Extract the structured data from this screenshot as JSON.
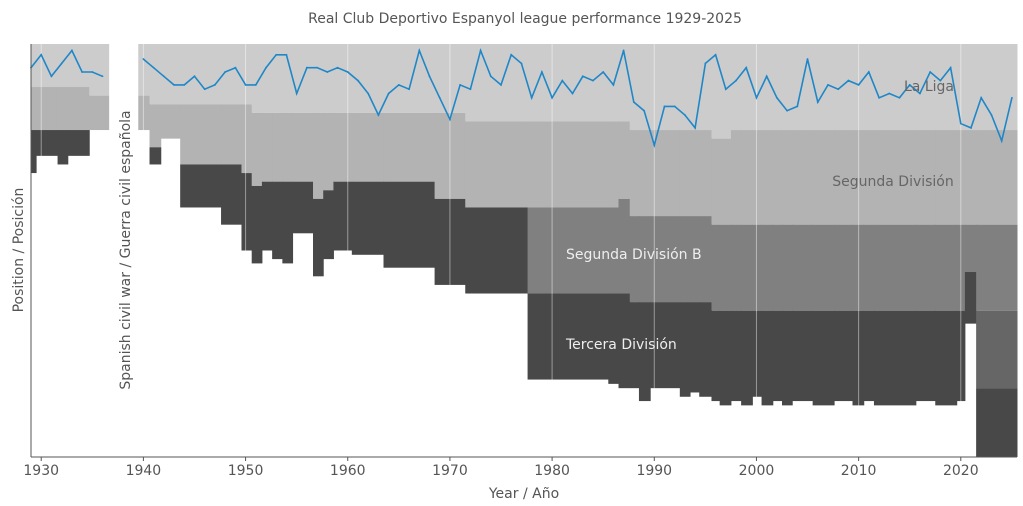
{
  "chart_data": {
    "type": "area",
    "title": "Real Club Deportivo Espanyol league performance 1929-2025",
    "xlabel": "Year / Año",
    "ylabel": "Position / Posición",
    "xlim": [
      1929,
      2025.5
    ],
    "ylim_inverted": [
      96,
      0
    ],
    "x_ticks": [
      1930,
      1940,
      1950,
      1960,
      1970,
      1980,
      1990,
      2000,
      2010,
      2020
    ],
    "grid": "vertical",
    "annotation": "Spanish civil war / Guerra civil española",
    "tier_labels": [
      "La Liga",
      "Segunda División",
      "Segunda División B",
      "Tercera División"
    ],
    "tier_colors": [
      "#cccccc",
      "#b3b3b3",
      "#808080",
      "#484848",
      "#666666"
    ],
    "line_color": "#1f87c8",
    "tier_segments": [
      [
        1929,
        1929.5,
        [
          [
            0,
            10
          ],
          [
            1,
            20
          ],
          [
            3,
            30
          ]
        ]
      ],
      [
        1929.5,
        1931.6,
        [
          [
            0,
            10
          ],
          [
            1,
            20
          ],
          [
            3,
            26
          ]
        ]
      ],
      [
        1931.6,
        1932.6,
        [
          [
            0,
            10
          ],
          [
            1,
            20
          ],
          [
            3,
            28
          ]
        ]
      ],
      [
        1932.6,
        1934.7,
        [
          [
            0,
            10
          ],
          [
            1,
            20
          ],
          [
            3,
            26
          ]
        ]
      ],
      [
        1934.7,
        1936.6,
        [
          [
            0,
            12
          ],
          [
            1,
            20
          ]
        ]
      ],
      [
        1939.5,
        1940.6,
        [
          [
            0,
            12
          ],
          [
            1,
            20
          ]
        ]
      ],
      [
        1940.6,
        1941.7,
        [
          [
            0,
            14
          ],
          [
            1,
            24
          ],
          [
            3,
            28
          ]
        ]
      ],
      [
        1941.7,
        1943.6,
        [
          [
            0,
            14
          ],
          [
            1,
            22
          ]
        ]
      ],
      [
        1943.6,
        1947.6,
        [
          [
            0,
            14
          ],
          [
            1,
            28
          ],
          [
            3,
            38
          ]
        ]
      ],
      [
        1947.6,
        1949.6,
        [
          [
            0,
            14
          ],
          [
            1,
            28
          ],
          [
            3,
            42
          ]
        ]
      ],
      [
        1949.6,
        1950.6,
        [
          [
            0,
            14
          ],
          [
            1,
            30
          ],
          [
            3,
            48
          ]
        ]
      ],
      [
        1950.6,
        1951.6,
        [
          [
            0,
            16
          ],
          [
            1,
            33
          ],
          [
            3,
            51
          ]
        ]
      ],
      [
        1951.6,
        1952.6,
        [
          [
            0,
            16
          ],
          [
            1,
            32
          ],
          [
            3,
            48
          ]
        ]
      ],
      [
        1952.6,
        1953.6,
        [
          [
            0,
            16
          ],
          [
            1,
            32
          ],
          [
            3,
            50
          ]
        ]
      ],
      [
        1953.6,
        1954.6,
        [
          [
            0,
            16
          ],
          [
            1,
            32
          ],
          [
            3,
            51
          ]
        ]
      ],
      [
        1954.6,
        1956.6,
        [
          [
            0,
            16
          ],
          [
            1,
            32
          ],
          [
            3,
            44
          ]
        ]
      ],
      [
        1956.6,
        1957.6,
        [
          [
            0,
            16
          ],
          [
            1,
            36
          ],
          [
            3,
            54
          ]
        ]
      ],
      [
        1957.6,
        1958.6,
        [
          [
            0,
            16
          ],
          [
            1,
            34
          ],
          [
            3,
            50
          ]
        ]
      ],
      [
        1958.6,
        1960.4,
        [
          [
            0,
            16
          ],
          [
            1,
            32
          ],
          [
            3,
            48
          ]
        ]
      ],
      [
        1960.4,
        1963.5,
        [
          [
            0,
            16
          ],
          [
            1,
            32
          ],
          [
            3,
            49
          ]
        ]
      ],
      [
        1963.5,
        1968.5,
        [
          [
            0,
            16
          ],
          [
            1,
            32
          ],
          [
            3,
            52
          ]
        ]
      ],
      [
        1968.5,
        1971.5,
        [
          [
            0,
            16
          ],
          [
            1,
            36
          ],
          [
            3,
            56
          ]
        ]
      ],
      [
        1971.5,
        1977.6,
        [
          [
            0,
            18
          ],
          [
            1,
            38
          ],
          [
            3,
            58
          ]
        ]
      ],
      [
        1977.6,
        1985.5,
        [
          [
            0,
            18
          ],
          [
            1,
            38
          ],
          [
            2,
            58
          ],
          [
            3,
            78
          ]
        ]
      ],
      [
        1985.5,
        1986.5,
        [
          [
            0,
            18
          ],
          [
            1,
            38
          ],
          [
            2,
            58
          ],
          [
            3,
            79
          ]
        ]
      ],
      [
        1986.5,
        1987.6,
        [
          [
            0,
            18
          ],
          [
            1,
            36
          ],
          [
            2,
            58
          ],
          [
            3,
            80
          ]
        ]
      ],
      [
        1987.6,
        1988.5,
        [
          [
            0,
            20
          ],
          [
            1,
            40
          ],
          [
            2,
            60
          ],
          [
            3,
            80
          ]
        ]
      ],
      [
        1988.5,
        1989.6,
        [
          [
            0,
            20
          ],
          [
            1,
            40
          ],
          [
            2,
            60
          ],
          [
            3,
            83
          ]
        ]
      ],
      [
        1989.6,
        1992.5,
        [
          [
            0,
            20
          ],
          [
            1,
            40
          ],
          [
            2,
            60
          ],
          [
            3,
            80
          ]
        ]
      ],
      [
        1992.5,
        1993.5,
        [
          [
            0,
            20
          ],
          [
            1,
            40
          ],
          [
            2,
            60
          ],
          [
            3,
            82
          ]
        ]
      ],
      [
        1993.5,
        1994.4,
        [
          [
            0,
            20
          ],
          [
            1,
            40
          ],
          [
            2,
            60
          ],
          [
            3,
            81
          ]
        ]
      ],
      [
        1994.4,
        1995.6,
        [
          [
            0,
            20
          ],
          [
            1,
            40
          ],
          [
            2,
            60
          ],
          [
            3,
            82
          ]
        ]
      ],
      [
        1995.6,
        1996.4,
        [
          [
            0,
            22
          ],
          [
            1,
            42
          ],
          [
            2,
            62
          ],
          [
            3,
            83
          ]
        ]
      ],
      [
        1996.4,
        1997.5,
        [
          [
            0,
            22
          ],
          [
            1,
            42
          ],
          [
            2,
            62
          ],
          [
            3,
            84
          ]
        ]
      ],
      [
        1997.5,
        1998.5,
        [
          [
            0,
            20
          ],
          [
            1,
            42
          ],
          [
            2,
            62
          ],
          [
            3,
            83
          ]
        ]
      ],
      [
        1998.5,
        1999.6,
        [
          [
            0,
            20
          ],
          [
            1,
            42
          ],
          [
            2,
            62
          ],
          [
            3,
            84
          ]
        ]
      ],
      [
        1999.6,
        2000.5,
        [
          [
            0,
            20
          ],
          [
            1,
            42
          ],
          [
            2,
            62
          ],
          [
            3,
            82
          ]
        ]
      ],
      [
        2000.5,
        2001.6,
        [
          [
            0,
            20
          ],
          [
            1,
            42
          ],
          [
            2,
            62
          ],
          [
            3,
            84
          ]
        ]
      ],
      [
        2001.6,
        2002.5,
        [
          [
            0,
            20
          ],
          [
            1,
            42
          ],
          [
            2,
            62
          ],
          [
            3,
            83
          ]
        ]
      ],
      [
        2002.5,
        2003.5,
        [
          [
            0,
            20
          ],
          [
            1,
            42
          ],
          [
            2,
            62
          ],
          [
            3,
            84
          ]
        ]
      ],
      [
        2003.5,
        2005.5,
        [
          [
            0,
            20
          ],
          [
            1,
            42
          ],
          [
            2,
            62
          ],
          [
            3,
            83
          ]
        ]
      ],
      [
        2005.5,
        2007.6,
        [
          [
            0,
            20
          ],
          [
            1,
            42
          ],
          [
            2,
            62
          ],
          [
            3,
            84
          ]
        ]
      ],
      [
        2007.6,
        2009.4,
        [
          [
            0,
            20
          ],
          [
            1,
            42
          ],
          [
            2,
            62
          ],
          [
            3,
            83
          ]
        ]
      ],
      [
        2009.4,
        2010.5,
        [
          [
            0,
            20
          ],
          [
            1,
            42
          ],
          [
            2,
            62
          ],
          [
            3,
            84
          ]
        ]
      ],
      [
        2010.5,
        2011.5,
        [
          [
            0,
            20
          ],
          [
            1,
            42
          ],
          [
            2,
            62
          ],
          [
            3,
            83
          ]
        ]
      ],
      [
        2011.5,
        2015.6,
        [
          [
            0,
            20
          ],
          [
            1,
            42
          ],
          [
            2,
            62
          ],
          [
            3,
            84
          ]
        ]
      ],
      [
        2015.6,
        2017.5,
        [
          [
            0,
            20
          ],
          [
            1,
            42
          ],
          [
            2,
            62
          ],
          [
            3,
            83
          ]
        ]
      ],
      [
        2017.5,
        2019.6,
        [
          [
            0,
            20
          ],
          [
            1,
            42
          ],
          [
            2,
            62
          ],
          [
            3,
            84
          ]
        ]
      ],
      [
        2019.6,
        2020.4,
        [
          [
            0,
            20
          ],
          [
            1,
            42
          ],
          [
            2,
            62
          ],
          [
            3,
            83
          ]
        ]
      ],
      [
        2020.4,
        2021.5,
        [
          [
            0,
            20
          ],
          [
            1,
            42
          ],
          [
            2,
            53
          ],
          [
            3,
            65
          ]
        ]
      ],
      [
        2021.5,
        2025.5,
        [
          [
            0,
            20
          ],
          [
            1,
            42
          ],
          [
            2,
            62
          ],
          [
            4,
            80
          ],
          [
            3,
            96
          ]
        ]
      ]
    ],
    "position_series": [
      {
        "years": [
          1929,
          1930,
          1931,
          1932,
          1933,
          1934,
          1935,
          1936
        ],
        "positions": [
          6,
          3,
          8,
          5,
          2,
          7,
          7,
          8
        ]
      },
      {
        "years": [
          1940,
          1941,
          1942,
          1943,
          1944,
          1945,
          1946,
          1947,
          1948,
          1949,
          1950,
          1951,
          1952,
          1953,
          1954,
          1955,
          1956,
          1957,
          1958,
          1959,
          1960,
          1961,
          1962,
          1963,
          1964,
          1965,
          1966,
          1967,
          1968,
          1969,
          1970,
          1971,
          1972,
          1973,
          1974,
          1975,
          1976,
          1977,
          1978,
          1979,
          1980,
          1981,
          1982,
          1983,
          1984,
          1985,
          1986,
          1987,
          1988,
          1989,
          1990,
          1991,
          1992,
          1993,
          1994,
          1995,
          1996,
          1997,
          1998,
          1999,
          2000,
          2001,
          2002,
          2003,
          2004,
          2005,
          2006,
          2007,
          2008,
          2009,
          2010,
          2011,
          2012,
          2013,
          2014,
          2015,
          2016,
          2017,
          2018,
          2019,
          2020,
          2021,
          2022,
          2023,
          2024,
          2025
        ],
        "positions": [
          4,
          6,
          8,
          10,
          10,
          8,
          11,
          10,
          7,
          6,
          10,
          10,
          6,
          3,
          3,
          12,
          6,
          6,
          7,
          6,
          7,
          9,
          12,
          17,
          12,
          10,
          11,
          2,
          8,
          13,
          18,
          10,
          11,
          2,
          8,
          10,
          3,
          5,
          13,
          7,
          13,
          9,
          12,
          8,
          9,
          7,
          10,
          2,
          14,
          16,
          24,
          15,
          15,
          17,
          20,
          5,
          3,
          11,
          9,
          6,
          13,
          8,
          13,
          16,
          15,
          4,
          14,
          10,
          11,
          9,
          10,
          7,
          13,
          12,
          13,
          10,
          12,
          7,
          9,
          6,
          19,
          20,
          13,
          17,
          23,
          13
        ]
      }
    ]
  }
}
